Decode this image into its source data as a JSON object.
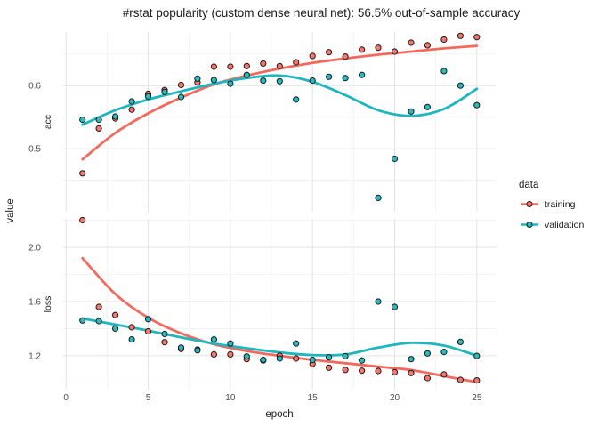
{
  "chart_data": {
    "type": "scatter",
    "title": "#rstat popularity (custom dense neural net): 56.5% out-of-sample accuracy",
    "xlabel": "epoch",
    "ylabel": "value",
    "xlim": [
      -0.2,
      26.2
    ],
    "xticks": [
      {
        "value": 0,
        "label": "0"
      },
      {
        "value": 5,
        "label": "5"
      },
      {
        "value": 10,
        "label": "10"
      },
      {
        "value": 15,
        "label": "15"
      },
      {
        "value": 20,
        "label": "20"
      },
      {
        "value": 25,
        "label": "25"
      }
    ],
    "xminor": [
      2.5,
      7.5,
      12.5,
      17.5,
      22.5
    ],
    "epochs": [
      1,
      2,
      3,
      4,
      5,
      6,
      7,
      8,
      9,
      10,
      11,
      12,
      13,
      14,
      15,
      16,
      17,
      18,
      19,
      20,
      21,
      22,
      23,
      24,
      25
    ],
    "grid": true,
    "legend_position": "right",
    "legend": {
      "title": "data",
      "entries": [
        {
          "label": "training",
          "series": "training"
        },
        {
          "label": "validation",
          "series": "validation"
        }
      ]
    },
    "facets": [
      {
        "name": "acc",
        "ylim": [
          0.4,
          0.685
        ],
        "yticks": [
          {
            "value": 0.5,
            "label": "0.5"
          },
          {
            "value": 0.6,
            "label": "0.6"
          }
        ],
        "yminor": [
          0.45,
          0.55,
          0.65
        ],
        "points": {
          "training": [
            0.461,
            0.532,
            0.548,
            0.562,
            0.587,
            0.593,
            0.601,
            0.605,
            0.63,
            0.63,
            0.631,
            0.635,
            0.631,
            0.637,
            0.647,
            0.653,
            0.646,
            0.657,
            0.66,
            0.654,
            0.668,
            0.664,
            0.673,
            0.679,
            0.677
          ],
          "validation": [
            0.546,
            0.546,
            0.551,
            0.575,
            0.583,
            0.59,
            0.582,
            0.611,
            0.609,
            0.603,
            0.617,
            0.608,
            0.607,
            0.578,
            0.608,
            0.614,
            0.612,
            0.617,
            0.422,
            0.484,
            0.559,
            0.566,
            0.623,
            0.6,
            0.569
          ]
        },
        "smooth": {
          "x": [
            1,
            3,
            5,
            7,
            9,
            11,
            13,
            15,
            17,
            19,
            21,
            23,
            25
          ],
          "training": [
            0.483,
            0.525,
            0.556,
            0.581,
            0.602,
            0.616,
            0.627,
            0.636,
            0.643,
            0.649,
            0.654,
            0.659,
            0.663
          ],
          "validation": [
            0.538,
            0.561,
            0.578,
            0.591,
            0.603,
            0.612,
            0.616,
            0.606,
            0.585,
            0.561,
            0.552,
            0.563,
            0.595
          ]
        }
      },
      {
        "name": "loss",
        "ylim": [
          0.95,
          2.21
        ],
        "yticks": [
          {
            "value": 1.2,
            "label": "1.2"
          },
          {
            "value": 1.6,
            "label": "1.6"
          },
          {
            "value": 2.0,
            "label": "2.0"
          }
        ],
        "yminor": [
          1.0,
          1.4,
          1.8,
          2.2
        ],
        "points": {
          "training": [
            2.2,
            1.56,
            1.5,
            1.41,
            1.38,
            1.3,
            1.25,
            1.245,
            1.21,
            1.21,
            1.175,
            1.165,
            1.2,
            1.18,
            1.14,
            1.112,
            1.096,
            1.09,
            1.088,
            1.079,
            1.073,
            1.035,
            1.062,
            1.022,
            1.018
          ],
          "validation": [
            1.46,
            1.455,
            1.4,
            1.32,
            1.47,
            1.36,
            1.26,
            1.24,
            1.32,
            1.29,
            1.195,
            1.17,
            1.18,
            1.29,
            1.17,
            1.188,
            1.197,
            1.165,
            1.6,
            1.56,
            1.175,
            1.217,
            1.228,
            1.302,
            1.199
          ]
        },
        "smooth": {
          "x": [
            1,
            3,
            5,
            7,
            9,
            11,
            13,
            15,
            17,
            19,
            21,
            23,
            25
          ],
          "training": [
            1.92,
            1.655,
            1.48,
            1.365,
            1.285,
            1.235,
            1.2,
            1.17,
            1.145,
            1.12,
            1.095,
            1.05,
            1.005
          ],
          "validation": [
            1.475,
            1.43,
            1.385,
            1.335,
            1.29,
            1.255,
            1.225,
            1.205,
            1.21,
            1.26,
            1.295,
            1.275,
            1.2
          ]
        }
      }
    ],
    "colors": {
      "training_line": "#F4695D",
      "training_fill": "#F8766D",
      "validation_line": "#1FB6BD",
      "validation_fill": "#26BCC1",
      "point_stroke": "#1A1A1A",
      "grid_major": "#E3E3E3",
      "grid_minor": "#F1F1F1",
      "text": "#1A1A1A",
      "tick_text": "#4D4D4D",
      "background": "#FFFFFF"
    }
  }
}
